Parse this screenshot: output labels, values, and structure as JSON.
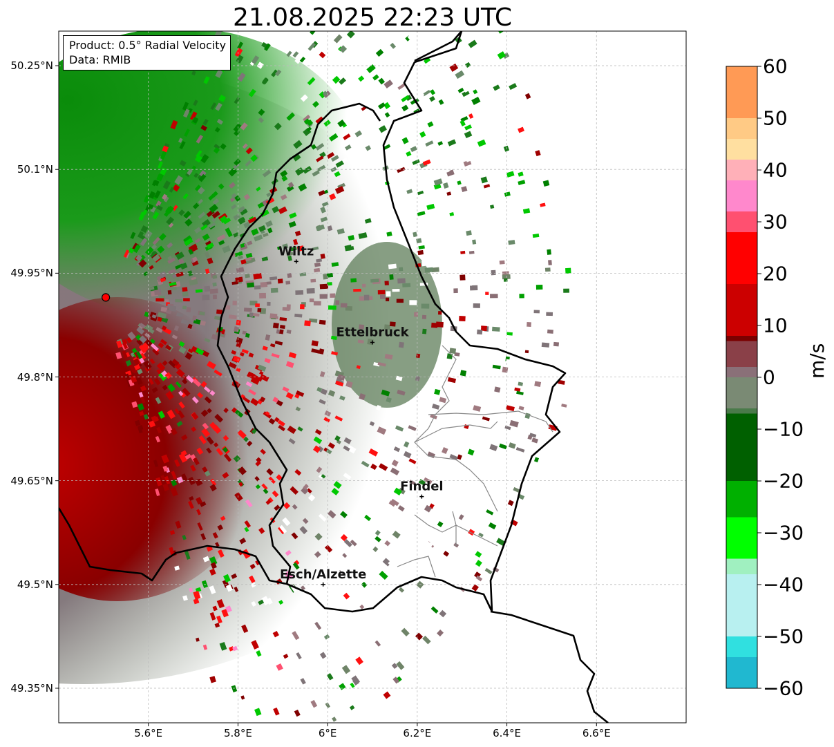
{
  "title": "21.08.2025 22:23 UTC",
  "legend": {
    "product": "Product: 0.5° Radial Velocity",
    "data_source": "Data: RMIB"
  },
  "axes": {
    "lat_ticks": [
      {
        "value": 50.25,
        "label": "50.25°N"
      },
      {
        "value": 50.1,
        "label": "50.1°N"
      },
      {
        "value": 49.95,
        "label": "49.95°N"
      },
      {
        "value": 49.8,
        "label": "49.8°N"
      },
      {
        "value": 49.65,
        "label": "49.65°N"
      },
      {
        "value": 49.5,
        "label": "49.5°N"
      },
      {
        "value": 49.35,
        "label": "49.35°N"
      }
    ],
    "lon_ticks": [
      {
        "value": 5.6,
        "label": "5.6°E"
      },
      {
        "value": 5.8,
        "label": "5.8°E"
      },
      {
        "value": 6.0,
        "label": "6°E"
      },
      {
        "value": 6.2,
        "label": "6.2°E"
      },
      {
        "value": 6.4,
        "label": "6.4°E"
      },
      {
        "value": 6.6,
        "label": "6.6°E"
      }
    ],
    "lon_range": [
      5.4,
      6.8
    ],
    "lat_range": [
      49.3,
      50.3
    ],
    "grid": true
  },
  "cities": [
    {
      "name": "Wiltz",
      "lon": 5.93,
      "lat": 49.967
    },
    {
      "name": "Ettelbruck",
      "lon": 6.1,
      "lat": 49.85
    },
    {
      "name": "Findel",
      "lon": 6.21,
      "lat": 49.627
    },
    {
      "name": "Esch/Alzette",
      "lon": 5.99,
      "lat": 49.5
    }
  ],
  "radar_site": {
    "lon": 5.505,
    "lat": 49.915,
    "color": "#ff0000"
  },
  "colorbar": {
    "unit": "m/s",
    "min": -60,
    "max": 60,
    "ticks": [
      {
        "value": 60,
        "label": "60"
      },
      {
        "value": 50,
        "label": "50"
      },
      {
        "value": 40,
        "label": "40"
      },
      {
        "value": 30,
        "label": "30"
      },
      {
        "value": 20,
        "label": "20"
      },
      {
        "value": 10,
        "label": "10"
      },
      {
        "value": 0,
        "label": "0"
      },
      {
        "value": -10,
        "label": "−10"
      },
      {
        "value": -20,
        "label": "−20"
      },
      {
        "value": -30,
        "label": "−30"
      },
      {
        "value": -40,
        "label": "−40"
      },
      {
        "value": -50,
        "label": "−50"
      },
      {
        "value": -60,
        "label": "−60"
      }
    ],
    "stops": [
      {
        "value": 60,
        "color": "#ff9a55"
      },
      {
        "value": 50,
        "color": "#ffca85"
      },
      {
        "value": 46,
        "color": "#ffdfa0"
      },
      {
        "value": 42,
        "color": "#ffb0b8"
      },
      {
        "value": 38,
        "color": "#ff88cc"
      },
      {
        "value": 32,
        "color": "#ff5070"
      },
      {
        "value": 28,
        "color": "#ff0000"
      },
      {
        "value": 18,
        "color": "#cc0000"
      },
      {
        "value": 8,
        "color": "#7a0000"
      },
      {
        "value": 7,
        "color": "#8a4048"
      },
      {
        "value": 2,
        "color": "#8a7078"
      },
      {
        "value": 0,
        "color": "#7a8a74"
      },
      {
        "value": -6,
        "color": "#4a7a4a"
      },
      {
        "value": -7,
        "color": "#006000"
      },
      {
        "value": -20,
        "color": "#00b000"
      },
      {
        "value": -27,
        "color": "#00ff00"
      },
      {
        "value": -35,
        "color": "#a0f0c0"
      },
      {
        "value": -38,
        "color": "#b8f0f0"
      },
      {
        "value": -50,
        "color": "#30e0e0"
      },
      {
        "value": -54,
        "color": "#20b8d0"
      },
      {
        "value": -60,
        "color": "#2080c8"
      }
    ]
  }
}
